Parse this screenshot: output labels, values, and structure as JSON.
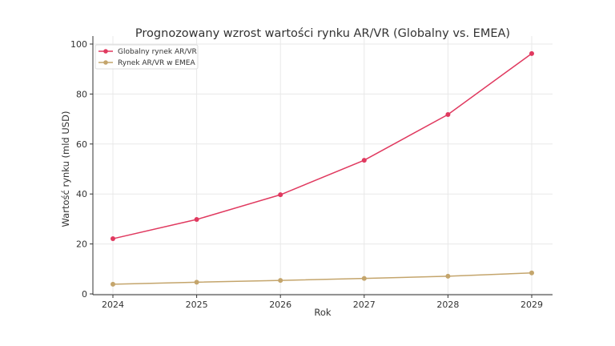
{
  "chart_data": {
    "type": "line",
    "title": "Prognozowany wzrost wartości rynku AR/VR (Globalny vs. EMEA)",
    "xlabel": "Rok",
    "ylabel": "Wartość rynku (mld USD)",
    "x": [
      2024,
      2025,
      2026,
      2027,
      2028,
      2029
    ],
    "xticks": [
      "2024",
      "2025",
      "2026",
      "2027",
      "2028",
      "2029"
    ],
    "yticks": [
      "0",
      "20",
      "40",
      "60",
      "80",
      "100"
    ],
    "ylim": [
      0,
      100
    ],
    "grid": true,
    "legend_position": "top-left",
    "series": [
      {
        "name": "Globalny rynek AR/VR",
        "color": "#e0395f",
        "values": [
          22.1,
          29.8,
          39.7,
          53.5,
          71.8,
          96.2
        ]
      },
      {
        "name": "Rynek AR/VR w EMEA",
        "color": "#c4a56c",
        "values": [
          3.9,
          4.7,
          5.4,
          6.2,
          7.1,
          8.4
        ]
      }
    ]
  }
}
